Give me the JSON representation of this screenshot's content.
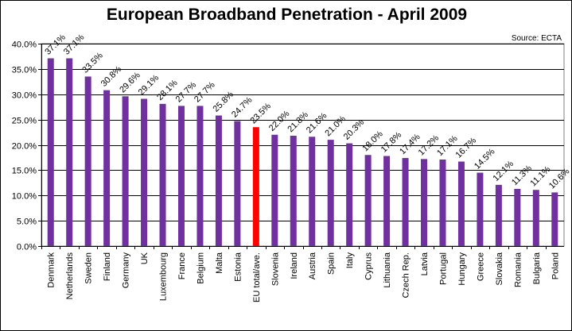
{
  "chart_data": {
    "type": "bar",
    "title": "European Broadband Penetration - April 2009",
    "source": "Source: ECTA",
    "xlabel": "",
    "ylabel": "",
    "ylim": [
      0,
      40
    ],
    "yticks": [
      "0.0%",
      "5.0%",
      "10.0%",
      "15.0%",
      "20.0%",
      "25.0%",
      "30.0%",
      "35.0%",
      "40.0%"
    ],
    "grid": true,
    "legend": "none",
    "colors": {
      "bar": "#7030a0",
      "highlight": "#ff0000",
      "grid": "#000000"
    },
    "highlight_category": "EU total/ave.",
    "categories": [
      "Denmark",
      "Netherlands",
      "Sweden",
      "Finland",
      "Germany",
      "UK",
      "Luxembourg",
      "France",
      "Belgium",
      "Malta",
      "Estonia",
      "EU total/ave.",
      "Slovenia",
      "Ireland",
      "Austria",
      "Spain",
      "Italy",
      "Cyprus",
      "Lithuania",
      "Czech Rep.",
      "Latvia",
      "Portugal",
      "Hungary",
      "Greece",
      "Slovakia",
      "Romania",
      "Bulgaria",
      "Poland"
    ],
    "values": [
      37.1,
      37.1,
      33.5,
      30.8,
      29.6,
      29.1,
      28.1,
      27.7,
      27.7,
      25.8,
      24.7,
      23.5,
      22.0,
      21.8,
      21.6,
      21.0,
      20.3,
      18.0,
      17.8,
      17.4,
      17.2,
      17.1,
      16.7,
      14.5,
      12.1,
      11.3,
      11.1,
      10.6
    ],
    "data_labels": [
      "37.1%",
      "37.1%",
      "33.5%",
      "30.8%",
      "29.6%",
      "29.1%",
      "28.1%",
      "27.7%",
      "27.7%",
      "25.8%",
      "24.7%",
      "23.5%",
      "22.0%",
      "21.8%",
      "21.6%",
      "21.0%",
      "20.3%",
      "18.0%",
      "17.8%",
      "17.4%",
      "17.2%",
      "17.1%",
      "16.7%",
      "14.5%",
      "12.1%",
      "11.3%",
      "11.1%",
      "10.6%"
    ]
  }
}
